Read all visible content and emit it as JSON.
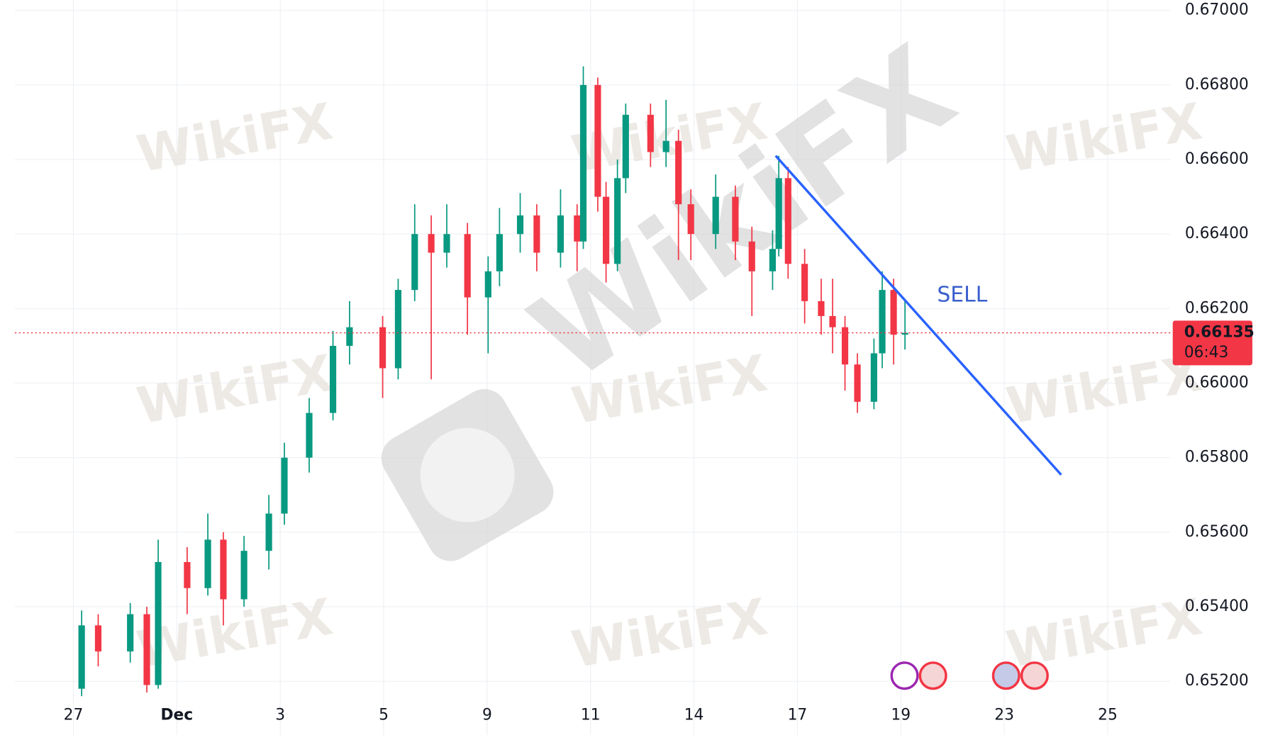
{
  "chart_data": {
    "type": "candlestick",
    "watermark": "WikiFX",
    "x": [
      0.08,
      0.24,
      0.55,
      0.71,
      0.82,
      1.1,
      1.3,
      1.45,
      1.65,
      1.89,
      2.04,
      2.28,
      2.51,
      2.67,
      2.99,
      3.14,
      3.3,
      3.46,
      3.61,
      3.81,
      4.01,
      4.12,
      4.32,
      4.48,
      4.71,
      4.87,
      4.93,
      5.07,
      5.15,
      5.26,
      5.34,
      5.58,
      5.73,
      5.85,
      5.97,
      6.21,
      6.4,
      6.56,
      6.76,
      6.82,
      6.91,
      7.07,
      7.23,
      7.34,
      7.46,
      7.58,
      7.74,
      7.82,
      7.93,
      8.04
    ],
    "open": [
      0.6518,
      0.6535,
      0.6528,
      0.6538,
      0.6519,
      0.6552,
      0.6545,
      0.6558,
      0.6542,
      0.6555,
      0.6565,
      0.658,
      0.6592,
      0.661,
      0.6615,
      0.6604,
      0.6625,
      0.664,
      0.6635,
      0.664,
      0.6623,
      0.663,
      0.664,
      0.6645,
      0.6635,
      0.6645,
      0.6638,
      0.668,
      0.665,
      0.6632,
      0.6655,
      0.6672,
      0.6662,
      0.6665,
      0.6648,
      0.664,
      0.665,
      0.6638,
      0.663,
      0.6636,
      0.6655,
      0.6632,
      0.6622,
      0.6618,
      0.6615,
      0.6605,
      0.6595,
      0.6608,
      0.6625,
      0.6613
    ],
    "high": [
      0.6539,
      0.6538,
      0.6541,
      0.654,
      0.6558,
      0.6556,
      0.6565,
      0.656,
      0.6559,
      0.657,
      0.6584,
      0.6596,
      0.6614,
      0.6622,
      0.6618,
      0.6628,
      0.6648,
      0.6645,
      0.6648,
      0.6643,
      0.6634,
      0.6647,
      0.6651,
      0.6648,
      0.6652,
      0.6648,
      0.6685,
      0.6682,
      0.6654,
      0.666,
      0.6675,
      0.6675,
      0.6676,
      0.6668,
      0.6652,
      0.6656,
      0.6653,
      0.6642,
      0.6641,
      0.6661,
      0.6658,
      0.6636,
      0.6628,
      0.6628,
      0.6618,
      0.6608,
      0.6612,
      0.663,
      0.6628,
      0.6622
    ],
    "low": [
      0.6516,
      0.6524,
      0.6525,
      0.6517,
      0.6518,
      0.6538,
      0.6543,
      0.6535,
      0.654,
      0.655,
      0.6562,
      0.6576,
      0.659,
      0.6605,
      0.6596,
      0.6601,
      0.6622,
      0.6601,
      0.6631,
      0.6613,
      0.6608,
      0.6626,
      0.6635,
      0.663,
      0.6631,
      0.663,
      0.6636,
      0.6646,
      0.6627,
      0.663,
      0.6651,
      0.6658,
      0.6658,
      0.6633,
      0.6633,
      0.6636,
      0.6633,
      0.6618,
      0.6625,
      0.6634,
      0.6628,
      0.6616,
      0.6613,
      0.6608,
      0.6598,
      0.6592,
      0.6593,
      0.6604,
      0.6605,
      0.6609
    ],
    "close": [
      0.6535,
      0.6528,
      0.6538,
      0.6519,
      0.6552,
      0.6545,
      0.6558,
      0.6542,
      0.6555,
      0.6565,
      0.658,
      0.6592,
      0.661,
      0.6615,
      0.6604,
      0.6625,
      0.664,
      0.6635,
      0.664,
      0.6623,
      0.663,
      0.664,
      0.6645,
      0.6635,
      0.6645,
      0.6638,
      0.668,
      0.665,
      0.6632,
      0.6655,
      0.6672,
      0.6662,
      0.6665,
      0.6648,
      0.664,
      0.665,
      0.6638,
      0.663,
      0.6636,
      0.6655,
      0.6632,
      0.6622,
      0.6618,
      0.6615,
      0.6605,
      0.6595,
      0.6608,
      0.6625,
      0.6613,
      0.66135
    ],
    "up_color": "#089981",
    "down_color": "#f23645",
    "xlim": [
      -0.566,
      10.605
    ],
    "ylim": [
      0.65056,
      0.67028
    ],
    "xticks": [
      {
        "value": 0,
        "label": "27"
      },
      {
        "value": 1,
        "label": "Dec"
      },
      {
        "value": 2,
        "label": "3"
      },
      {
        "value": 3,
        "label": "5"
      },
      {
        "value": 4,
        "label": "9"
      },
      {
        "value": 5,
        "label": "11"
      },
      {
        "value": 6,
        "label": "14"
      },
      {
        "value": 7,
        "label": "17"
      },
      {
        "value": 8,
        "label": "19"
      },
      {
        "value": 9,
        "label": "23"
      },
      {
        "value": 10,
        "label": "25"
      }
    ],
    "yticks": [
      {
        "value": 0.652,
        "label": "0.65200"
      },
      {
        "value": 0.654,
        "label": "0.65400"
      },
      {
        "value": 0.656,
        "label": "0.65600"
      },
      {
        "value": 0.658,
        "label": "0.65800"
      },
      {
        "value": 0.66,
        "label": "0.66000"
      },
      {
        "value": 0.662,
        "label": "0.66200"
      },
      {
        "value": 0.664,
        "label": "0.66400"
      },
      {
        "value": 0.666,
        "label": "0.66600"
      },
      {
        "value": 0.668,
        "label": "0.66800"
      },
      {
        "value": 0.67,
        "label": "0.67000"
      }
    ],
    "grid": true,
    "last_price": 0.66135,
    "countdown": "06:43",
    "trendline": {
      "x": [
        6.79,
        9.55
      ],
      "y": [
        0.6661,
        0.65754
      ],
      "color": "#2962ff"
    },
    "annotation": "SELL"
  }
}
